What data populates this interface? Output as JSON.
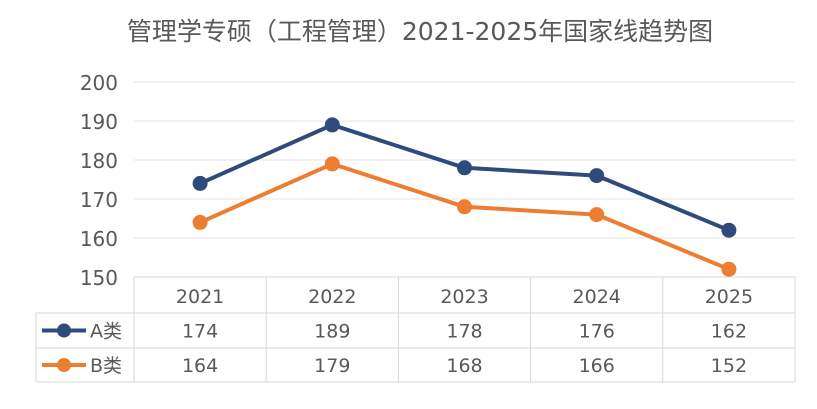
{
  "chart_data": {
    "type": "line",
    "title": "管理学专硕（工程管理）2021-2025年国家线趋势图",
    "categories": [
      "2021",
      "2022",
      "2023",
      "2024",
      "2025"
    ],
    "ylim": [
      150,
      200
    ],
    "yticks": [
      150,
      160,
      170,
      180,
      190,
      200
    ],
    "grid": true,
    "legend_placement": "data-table",
    "series": [
      {
        "name": "A类",
        "values": [
          174,
          189,
          178,
          176,
          162
        ],
        "color": "#2F4B7C"
      },
      {
        "name": "B类",
        "values": [
          164,
          179,
          168,
          166,
          152
        ],
        "color": "#ED7D31"
      }
    ]
  }
}
